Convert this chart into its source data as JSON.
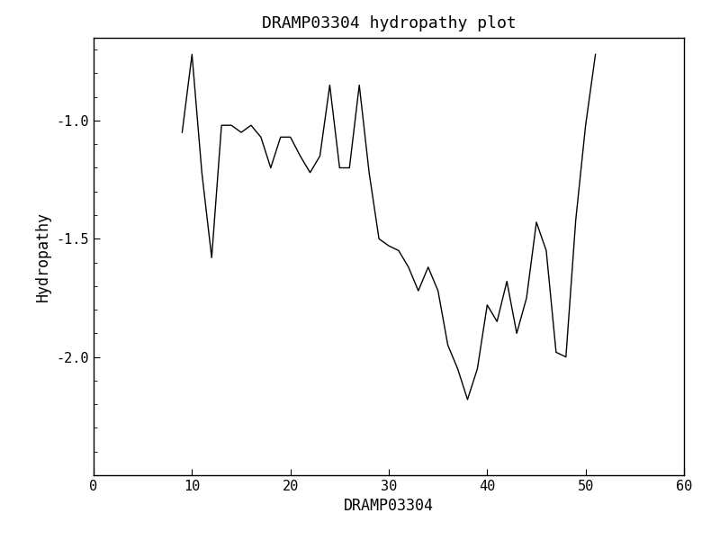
{
  "title": "DRAMP03304 hydropathy plot",
  "xlabel": "DRAMP03304",
  "ylabel": "Hydropathy",
  "xlim": [
    0,
    60
  ],
  "ylim": [
    -2.5,
    -0.65
  ],
  "xticks": [
    0,
    10,
    20,
    30,
    40,
    50,
    60
  ],
  "yticks": [
    -2.0,
    -1.5,
    -1.0
  ],
  "line_color": "black",
  "line_width": 1.0,
  "background_color": "white",
  "x": [
    9,
    10,
    11,
    12,
    13,
    14,
    15,
    16,
    17,
    18,
    19,
    20,
    21,
    22,
    23,
    24,
    25,
    26,
    27,
    28,
    29,
    30,
    31,
    32,
    33,
    34,
    35,
    36,
    37,
    38,
    39,
    40,
    41,
    42,
    43,
    44,
    45,
    46,
    47,
    48,
    49,
    50,
    51
  ],
  "y": [
    -1.05,
    -0.72,
    -1.22,
    -1.58,
    -1.02,
    -1.02,
    -1.05,
    -1.02,
    -1.07,
    -1.2,
    -1.07,
    -1.07,
    -1.15,
    -1.22,
    -1.15,
    -0.85,
    -1.2,
    -1.2,
    -0.85,
    -1.22,
    -1.5,
    -1.53,
    -1.55,
    -1.62,
    -1.72,
    -1.62,
    -1.72,
    -1.95,
    -2.05,
    -2.18,
    -2.05,
    -1.78,
    -1.85,
    -1.68,
    -1.9,
    -1.75,
    -1.43,
    -1.55,
    -1.98,
    -2.0,
    -1.42,
    -1.02,
    -0.72
  ]
}
